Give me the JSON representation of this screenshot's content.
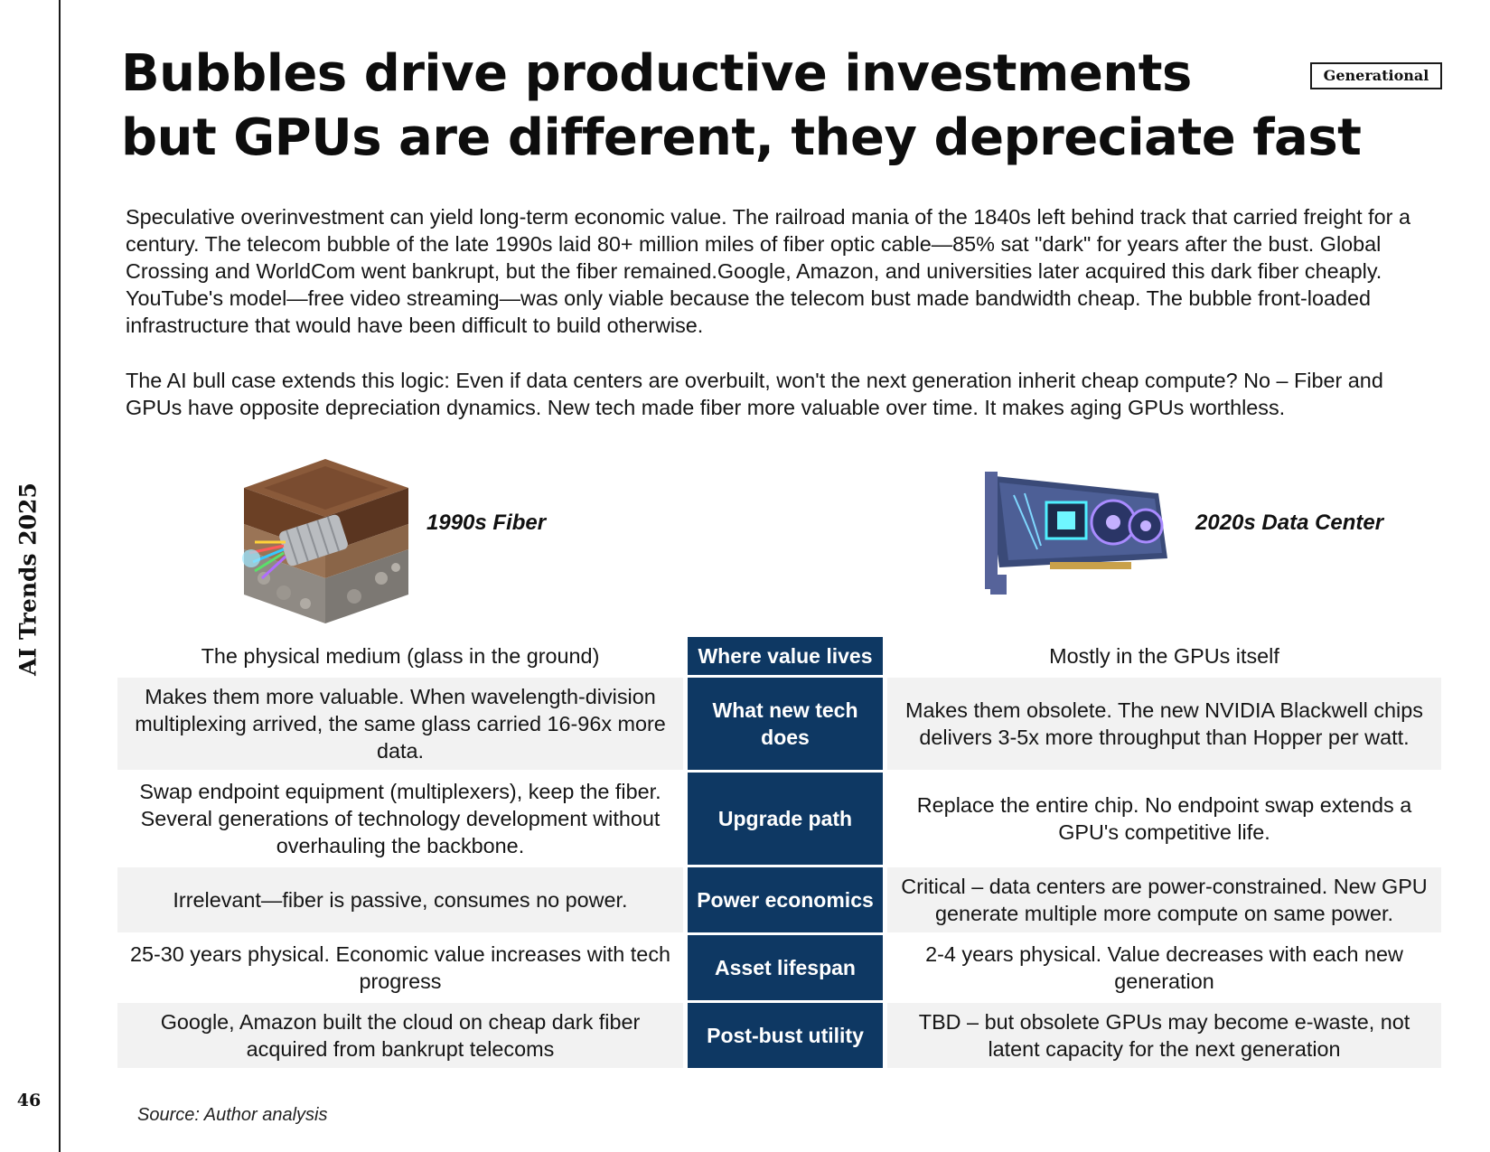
{
  "side": {
    "title": "AI Trends 2025",
    "page_number": "46"
  },
  "tag": "Generational",
  "title": {
    "line1": "Bubbles drive productive investments",
    "line2": "but GPUs are different, they depreciate fast"
  },
  "paragraphs": [
    "Speculative overinvestment can yield long-term economic value. The railroad mania of the 1840s left behind track that carried freight for a century. The telecom bubble of the late 1990s laid 80+ million miles of fiber optic cable—85% sat \"dark\" for years after the bust. Global Crossing and WorldCom went bankrupt, but the fiber remained.Google, Amazon, and universities later acquired this dark fiber cheaply. YouTube's model—free video streaming—was only viable because the telecom bust made bandwidth cheap. The bubble front-loaded infrastructure that would have been difficult to build otherwise.",
    "The AI bull case extends this logic: Even if data centers are overbuilt, won't the next generation inherit cheap compute? No – Fiber and GPUs have opposite depreciation dynamics. New tech made fiber more valuable over time. It makes aging GPUs worthless."
  ],
  "visuals": {
    "left": {
      "label": "1990s Fiber",
      "icon": "fiber-cable-ground-icon"
    },
    "right": {
      "label": "2020s Data Center",
      "icon": "gpu-card-icon"
    }
  },
  "table": {
    "rows": [
      {
        "label": "Where value lives",
        "left": "The physical medium (glass in the ground)",
        "right": "Mostly in the GPUs itself"
      },
      {
        "label": "What new tech does",
        "left": "Makes them more valuable. When wavelength-division multiplexing arrived, the same glass carried 16-96x more data.",
        "right": "Makes them obsolete. The new NVIDIA Blackwell chips delivers 3-5x more throughput than Hopper per watt."
      },
      {
        "label": "Upgrade path",
        "left": "Swap endpoint equipment (multiplexers), keep the fiber. Several generations of technology development without overhauling the backbone.",
        "right": "Replace the entire chip. No endpoint swap extends a GPU's competitive life."
      },
      {
        "label": "Power economics",
        "left": "Irrelevant—fiber is passive, consumes no power.",
        "right": "Critical – data centers are power-constrained. New GPU generate multiple more compute on same power."
      },
      {
        "label": "Asset lifespan",
        "left": "25-30 years physical. Economic value increases with tech progress",
        "right": "2-4 years physical. Value decreases with each new generation"
      },
      {
        "label": "Post-bust utility",
        "left": "Google, Amazon built the cloud on cheap dark fiber acquired from bankrupt telecoms",
        "right": "TBD – but obsolete GPUs may become e-waste, not latent capacity for the next generation"
      }
    ]
  },
  "source": "Source: Author analysis",
  "colors": {
    "label_cell": "#0e3863",
    "shaded_row": "#f2f2f2",
    "text": "#151515"
  }
}
